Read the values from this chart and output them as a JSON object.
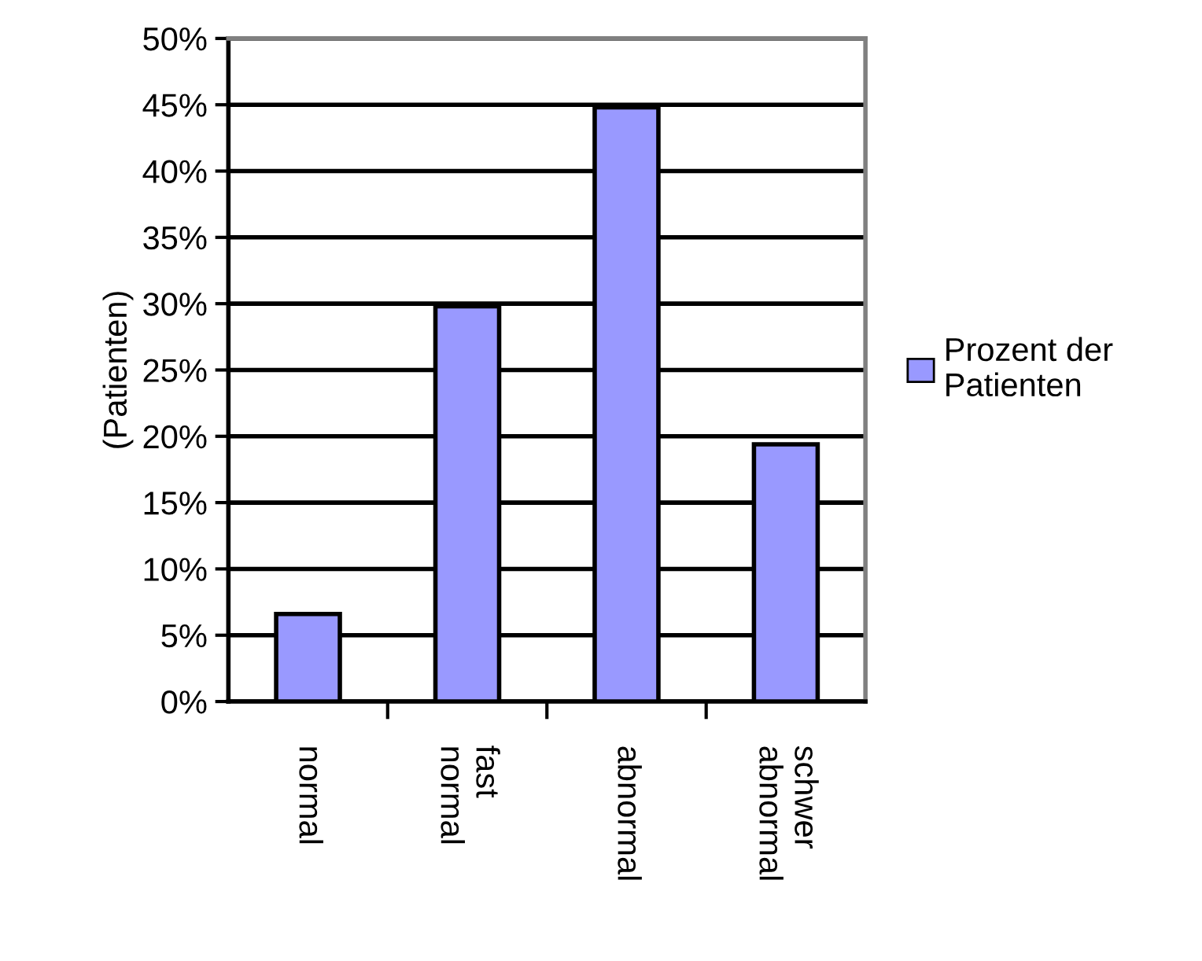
{
  "chart_data": {
    "type": "bar",
    "ylabel": "(Patienten)",
    "categories": [
      "normal",
      "fast\nnormal",
      "abnormal",
      "schwer\nabnormal"
    ],
    "series": [
      {
        "name": "Prozent der\nPatienten",
        "color": "#9999ff",
        "values": [
          6.6,
          29.8,
          44.8,
          19.4
        ]
      }
    ],
    "ylim": [
      0,
      50
    ],
    "yticks": [
      {
        "value": 0,
        "label": "0%"
      },
      {
        "value": 5,
        "label": "5%"
      },
      {
        "value": 10,
        "label": "10%"
      },
      {
        "value": 15,
        "label": "15%"
      },
      {
        "value": 20,
        "label": "20%"
      },
      {
        "value": 25,
        "label": "25%"
      },
      {
        "value": 30,
        "label": "30%"
      },
      {
        "value": 35,
        "label": "35%"
      },
      {
        "value": 40,
        "label": "40%"
      },
      {
        "value": 45,
        "label": "45%"
      },
      {
        "value": 50,
        "label": "50%"
      }
    ],
    "grid": "y",
    "legend": "right"
  }
}
